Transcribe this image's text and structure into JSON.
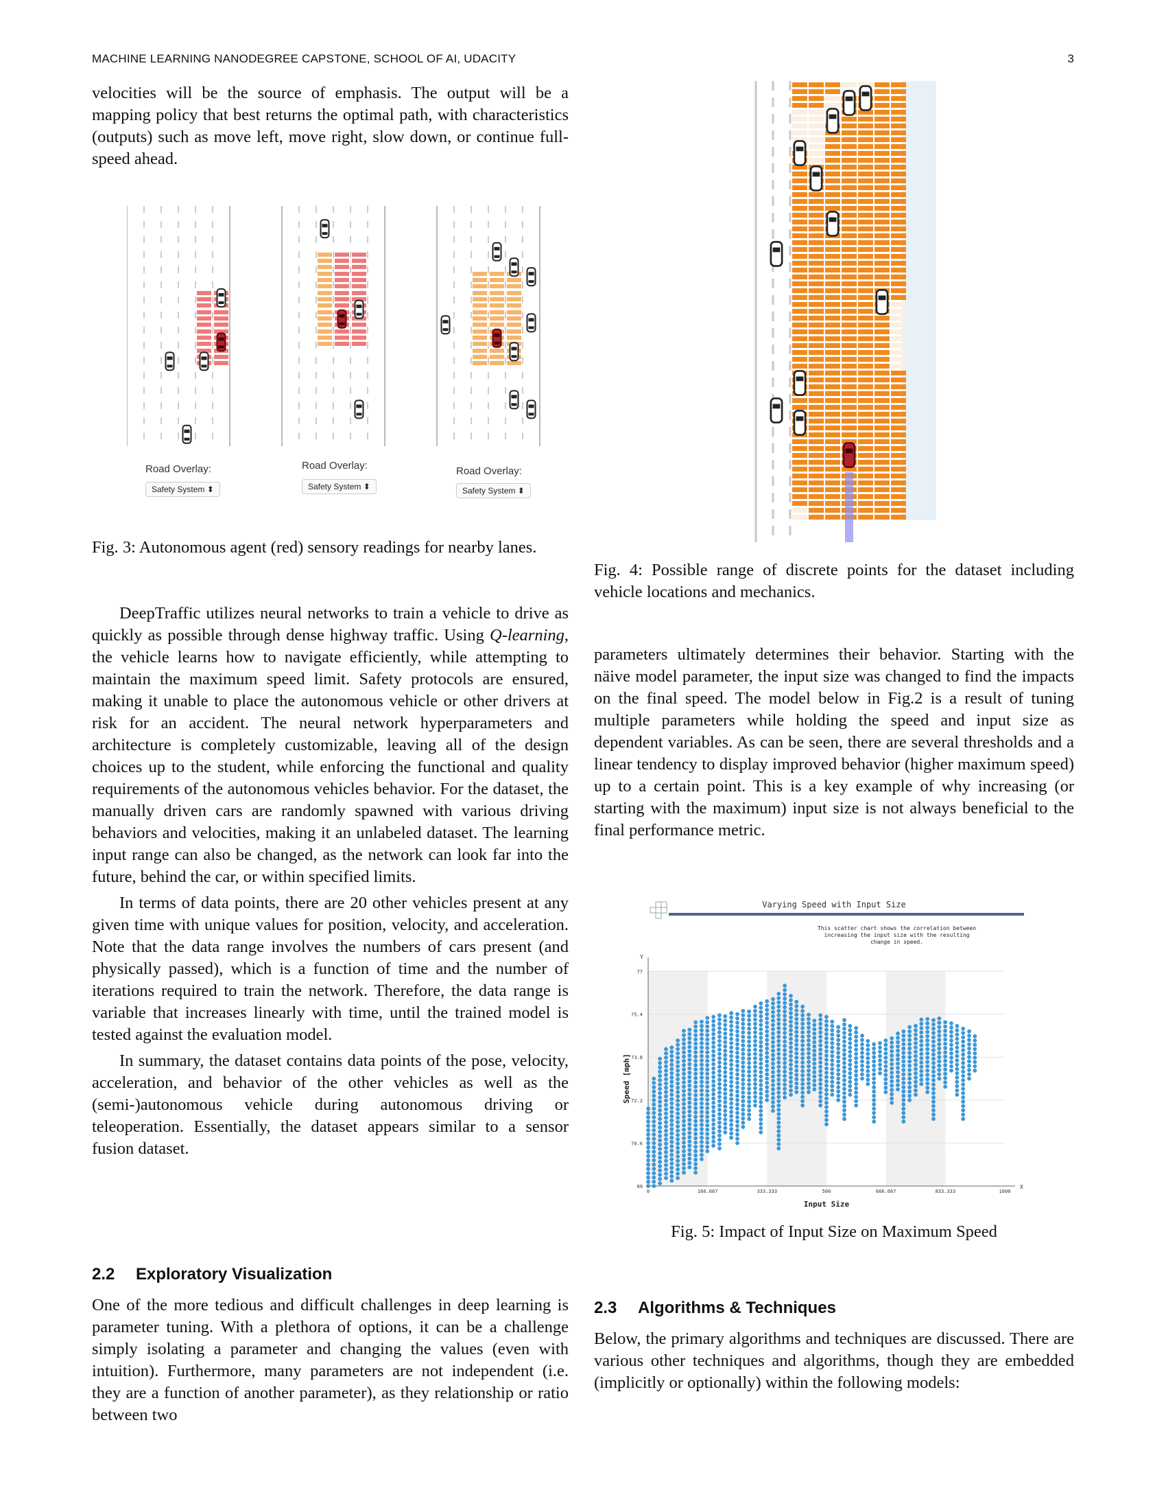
{
  "header": {
    "running_title": "MACHINE LEARNING NANODEGREE CAPSTONE, SCHOOL OF AI, UDACITY",
    "page_number": "3"
  },
  "left": {
    "intro_para": "velocities will be the source of emphasis. The output will be a mapping policy that best returns the optimal path, with characteristics (outputs) such as move left, move right, slow down, or continue full-speed ahead.",
    "fig3": {
      "overlay_label": "Road Overlay:",
      "select_value": "Safety System",
      "caption": "Fig. 3: Autonomous agent (red) sensory readings for nearby lanes."
    },
    "para1_prefix": "DeepTraffic utilizes neural networks to train a vehicle to drive as quickly as possible through dense highway traffic. Using ",
    "para1_em": "Q-learning",
    "para1_rest": ", the vehicle learns how to navigate efficiently, while attempting to maintain the maximum speed limit. Safety protocols are ensured, making it unable to place the autonomous vehicle or other drivers at risk for an accident. The neural network hyperparameters and architecture is completely customizable, leaving all of the design choices up to the student, while enforcing the functional and quality requirements of the autonomous vehicles behavior. For the dataset, the manually driven cars are randomly spawned with various driving behaviors and velocities, making it an unlabeled dataset. The learning input range can also be changed, as the network can look far into the future, behind the car, or within specified limits.",
    "para2": "In terms of data points, there are 20 other vehicles present at any given time with unique values for position, velocity, and acceleration. Note that the data range involves the numbers of cars present (and physically passed), which is a function of time and the number of iterations required to train the network. Therefore, the data range is variable that increases linearly with time, until the trained model is tested against the evaluation model.",
    "para3": "In summary, the dataset contains data points of the pose, velocity, acceleration, and behavior of the other vehicles as well as the (semi-)autonomous vehicle during autonomous driving or teleoperation. Essentially, the dataset appears similar to a sensor fusion dataset.",
    "sec_num": "2.2",
    "sec_title": "Exploratory Visualization",
    "para4": "One of the more tedious and difficult challenges in deep learning is parameter tuning. With a plethora of options, it can be a challenge simply isolating a parameter and changing the values (even with intuition). Furthermore, many parameters are not independent (i.e. they are a function of another parameter), as they relationship or ratio between two"
  },
  "right": {
    "fig4_caption": "Fig. 4: Possible range of discrete points for the dataset including vehicle locations and mechanics.",
    "para1": "parameters ultimately determines their behavior. Starting with the näive model parameter, the input size was changed to find the impacts on the final speed. The model below in Fig.2 is a result of tuning multiple parameters while holding the speed and input size as dependent variables. As can be seen, there are several thresholds and a linear tendency to display improved behavior (higher maximum speed) up to a certain point. This is a key example of why increasing (or starting with the maximum) input size is not always beneficial to the final performance metric.",
    "fig5_caption": "Fig. 5: Impact of Input Size on Maximum Speed",
    "sec_num": "2.3",
    "sec_title": "Algorithms & Techniques",
    "para2": "Below, the primary algorithms and techniques are discussed. There are various other techniques and algorithms, though they are embedded (implicitly or optionally) within the following models:"
  },
  "colors": {
    "cell_red": "#f07a7a",
    "cell_peach": "#f7b46a",
    "cell_orange": "#f08a1f",
    "agent": "#b2222c",
    "series": "#3a97d8",
    "lidar": "#8d8ff0"
  },
  "chart_data": {
    "type": "scatter",
    "title": "Varying Speed with Input Size",
    "subtitle": "This scatter chart shows the correlation between increasing the input size with the resulting change in speed.",
    "xlabel": "Input Size",
    "ylabel": "Speed [mph]",
    "x_axis_letter": "X",
    "y_axis_letter": "Y",
    "xlim": [
      0,
      1000
    ],
    "ylim": [
      69,
      77
    ],
    "xticks": [
      "0",
      "166.667",
      "333.333",
      "500",
      "666.667",
      "833.333",
      "1000"
    ],
    "yticks": [
      "69",
      "70.6",
      "72.2",
      "73.8",
      "75.4",
      "77"
    ],
    "columns": [
      {
        "x": 0,
        "ymin": 69.0,
        "ymax": 72.0
      },
      {
        "x": 16,
        "ymin": 69.0,
        "ymax": 73.0
      },
      {
        "x": 33,
        "ymin": 69.1,
        "ymax": 73.8
      },
      {
        "x": 50,
        "ymin": 69.3,
        "ymax": 74.1
      },
      {
        "x": 66,
        "ymin": 69.2,
        "ymax": 74.3
      },
      {
        "x": 83,
        "ymin": 69.3,
        "ymax": 74.5
      },
      {
        "x": 100,
        "ymin": 69.5,
        "ymax": 74.8
      },
      {
        "x": 116,
        "ymin": 69.7,
        "ymax": 74.9
      },
      {
        "x": 133,
        "ymin": 69.5,
        "ymax": 75.1
      },
      {
        "x": 150,
        "ymin": 70.0,
        "ymax": 75.2
      },
      {
        "x": 166,
        "ymin": 70.3,
        "ymax": 75.3
      },
      {
        "x": 183,
        "ymin": 70.5,
        "ymax": 75.3
      },
      {
        "x": 200,
        "ymin": 70.4,
        "ymax": 75.4
      },
      {
        "x": 216,
        "ymin": 71.0,
        "ymax": 75.4
      },
      {
        "x": 233,
        "ymin": 70.8,
        "ymax": 75.5
      },
      {
        "x": 250,
        "ymin": 70.6,
        "ymax": 75.5
      },
      {
        "x": 266,
        "ymin": 71.2,
        "ymax": 75.6
      },
      {
        "x": 283,
        "ymin": 71.5,
        "ymax": 75.6
      },
      {
        "x": 300,
        "ymin": 72.0,
        "ymax": 75.7
      },
      {
        "x": 316,
        "ymin": 71.0,
        "ymax": 75.9
      },
      {
        "x": 333,
        "ymin": 72.2,
        "ymax": 76.0
      },
      {
        "x": 350,
        "ymin": 71.8,
        "ymax": 76.1
      },
      {
        "x": 366,
        "ymin": 70.4,
        "ymax": 76.3
      },
      {
        "x": 383,
        "ymin": 72.3,
        "ymax": 76.5
      },
      {
        "x": 400,
        "ymin": 72.4,
        "ymax": 76.2
      },
      {
        "x": 416,
        "ymin": 72.5,
        "ymax": 76.0
      },
      {
        "x": 433,
        "ymin": 72.0,
        "ymax": 75.8
      },
      {
        "x": 450,
        "ymin": 72.5,
        "ymax": 75.5
      },
      {
        "x": 466,
        "ymin": 72.6,
        "ymax": 75.3
      },
      {
        "x": 483,
        "ymin": 72.0,
        "ymax": 75.4
      },
      {
        "x": 500,
        "ymin": 71.3,
        "ymax": 75.3
      },
      {
        "x": 516,
        "ymin": 72.4,
        "ymax": 75.2
      },
      {
        "x": 533,
        "ymin": 72.2,
        "ymax": 75.0
      },
      {
        "x": 550,
        "ymin": 71.5,
        "ymax": 75.2
      },
      {
        "x": 566,
        "ymin": 72.4,
        "ymax": 75.1
      },
      {
        "x": 583,
        "ymin": 72.0,
        "ymax": 74.9
      },
      {
        "x": 600,
        "ymin": 73.0,
        "ymax": 74.7
      },
      {
        "x": 616,
        "ymin": 72.8,
        "ymax": 74.5
      },
      {
        "x": 633,
        "ymin": 71.4,
        "ymax": 74.3
      },
      {
        "x": 650,
        "ymin": 73.2,
        "ymax": 74.4
      },
      {
        "x": 666,
        "ymin": 72.5,
        "ymax": 74.5
      },
      {
        "x": 683,
        "ymin": 72.1,
        "ymax": 74.6
      },
      {
        "x": 700,
        "ymin": 72.6,
        "ymax": 74.8
      },
      {
        "x": 716,
        "ymin": 71.4,
        "ymax": 74.9
      },
      {
        "x": 733,
        "ymin": 72.2,
        "ymax": 75.0
      },
      {
        "x": 750,
        "ymin": 72.4,
        "ymax": 75.1
      },
      {
        "x": 766,
        "ymin": 72.8,
        "ymax": 75.2
      },
      {
        "x": 783,
        "ymin": 72.5,
        "ymax": 75.3
      },
      {
        "x": 800,
        "ymin": 71.5,
        "ymax": 75.3
      },
      {
        "x": 816,
        "ymin": 73.0,
        "ymax": 75.3
      },
      {
        "x": 833,
        "ymin": 72.7,
        "ymax": 75.2
      },
      {
        "x": 850,
        "ymin": 73.3,
        "ymax": 75.2
      },
      {
        "x": 866,
        "ymin": 72.4,
        "ymax": 75.0
      },
      {
        "x": 883,
        "ymin": 71.5,
        "ymax": 74.9
      },
      {
        "x": 900,
        "ymin": 73.0,
        "ymax": 74.8
      },
      {
        "x": 916,
        "ymin": 73.3,
        "ymax": 74.6
      }
    ]
  }
}
